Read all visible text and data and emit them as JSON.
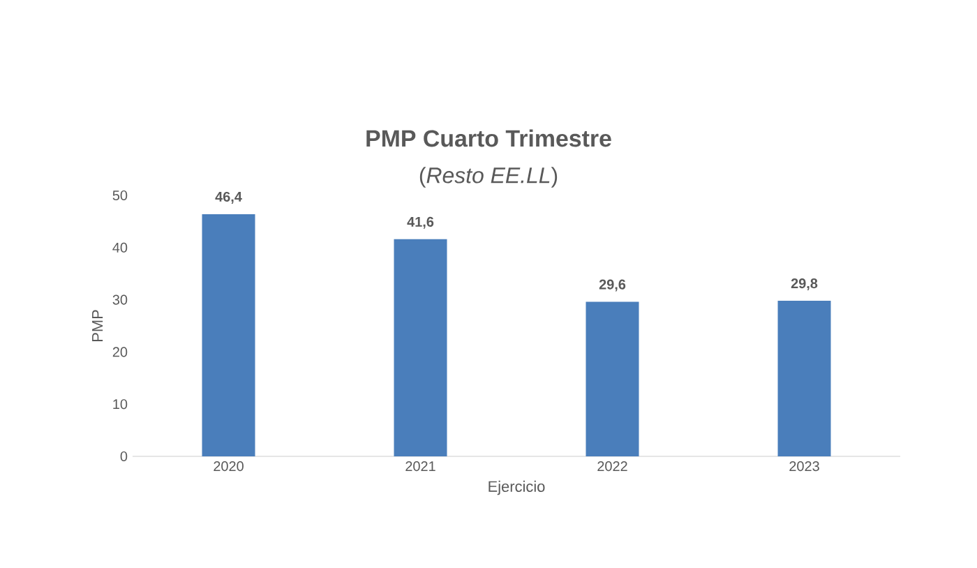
{
  "chart_data": {
    "type": "bar",
    "title": "PMP Cuarto Trimestre",
    "subtitle": "(*Resto EE.LL*)",
    "xlabel": "Ejercicio",
    "ylabel": "PMP",
    "categories": [
      "2020",
      "2021",
      "2022",
      "2023"
    ],
    "values": [
      46.4,
      41.6,
      29.6,
      29.8
    ],
    "value_labels": [
      "46,4",
      "41,6",
      "29,6",
      "29,8"
    ],
    "color": "#4a7ebb",
    "ylim": [
      0,
      50
    ],
    "yticks": [
      0,
      10,
      20,
      30,
      40,
      50
    ]
  }
}
